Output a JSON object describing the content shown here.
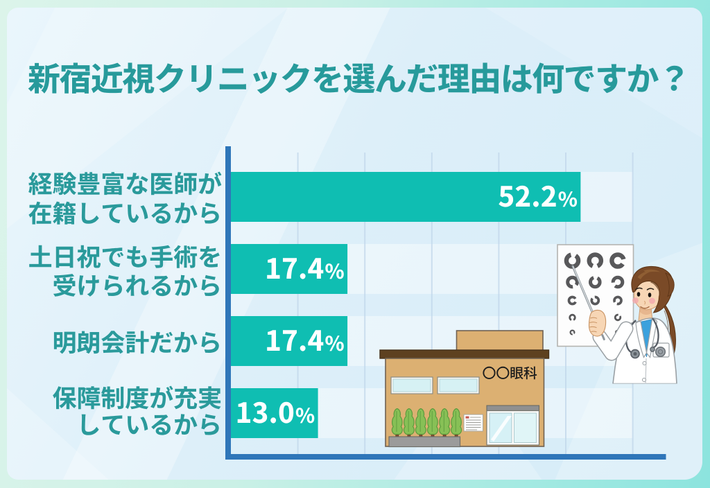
{
  "title": "新宿近視クリニックを選んだ理由は何ですか？",
  "chart_data": {
    "type": "bar",
    "orientation": "horizontal",
    "categories": [
      "経験豊富な医師が在籍しているから",
      "土日祝でも手術を受けられるから",
      "明朗会計だから",
      "保障制度が充実しているから"
    ],
    "category_lines": [
      [
        "経験豊富な医師が",
        "在籍しているから"
      ],
      [
        "土日祝でも手術を",
        "受けられるから"
      ],
      [
        "明朗会計だから"
      ],
      [
        "保障制度が充実",
        "しているから"
      ]
    ],
    "values": [
      52.2,
      17.4,
      17.4,
      13.0
    ],
    "value_labels": [
      "52.2%",
      "17.4%",
      "17.4%",
      "13.0%"
    ],
    "unit": "%",
    "xlim": [
      0,
      60
    ],
    "gridline_step_percent": 10,
    "legend": "none",
    "grid": "vertical-lines",
    "bar_color": "#0fbeb2",
    "axis_color": "#2f76b9",
    "gridline_color": "#b6cfe7",
    "category_label_color": "#2a9a9b",
    "value_label_color": "#ffffff",
    "title_color": "#279a9b"
  },
  "illustrations": {
    "clinic_building": "eye-clinic-building",
    "clinic_sign_text": "〇〇眼科",
    "doctor": "female-doctor-pointing-with-stick",
    "eye_chart": "landolt-c-vision-test-chart"
  },
  "colors": {
    "frame_gradient": [
      "#d9f2e7",
      "#bfeee3",
      "#86e2dc"
    ],
    "panel_background": "#d7ecf8",
    "row_track": "#ffffff",
    "bar": "#0fbeb2",
    "axis": "#2f76b9",
    "teal_text": "#2a9a9b"
  }
}
